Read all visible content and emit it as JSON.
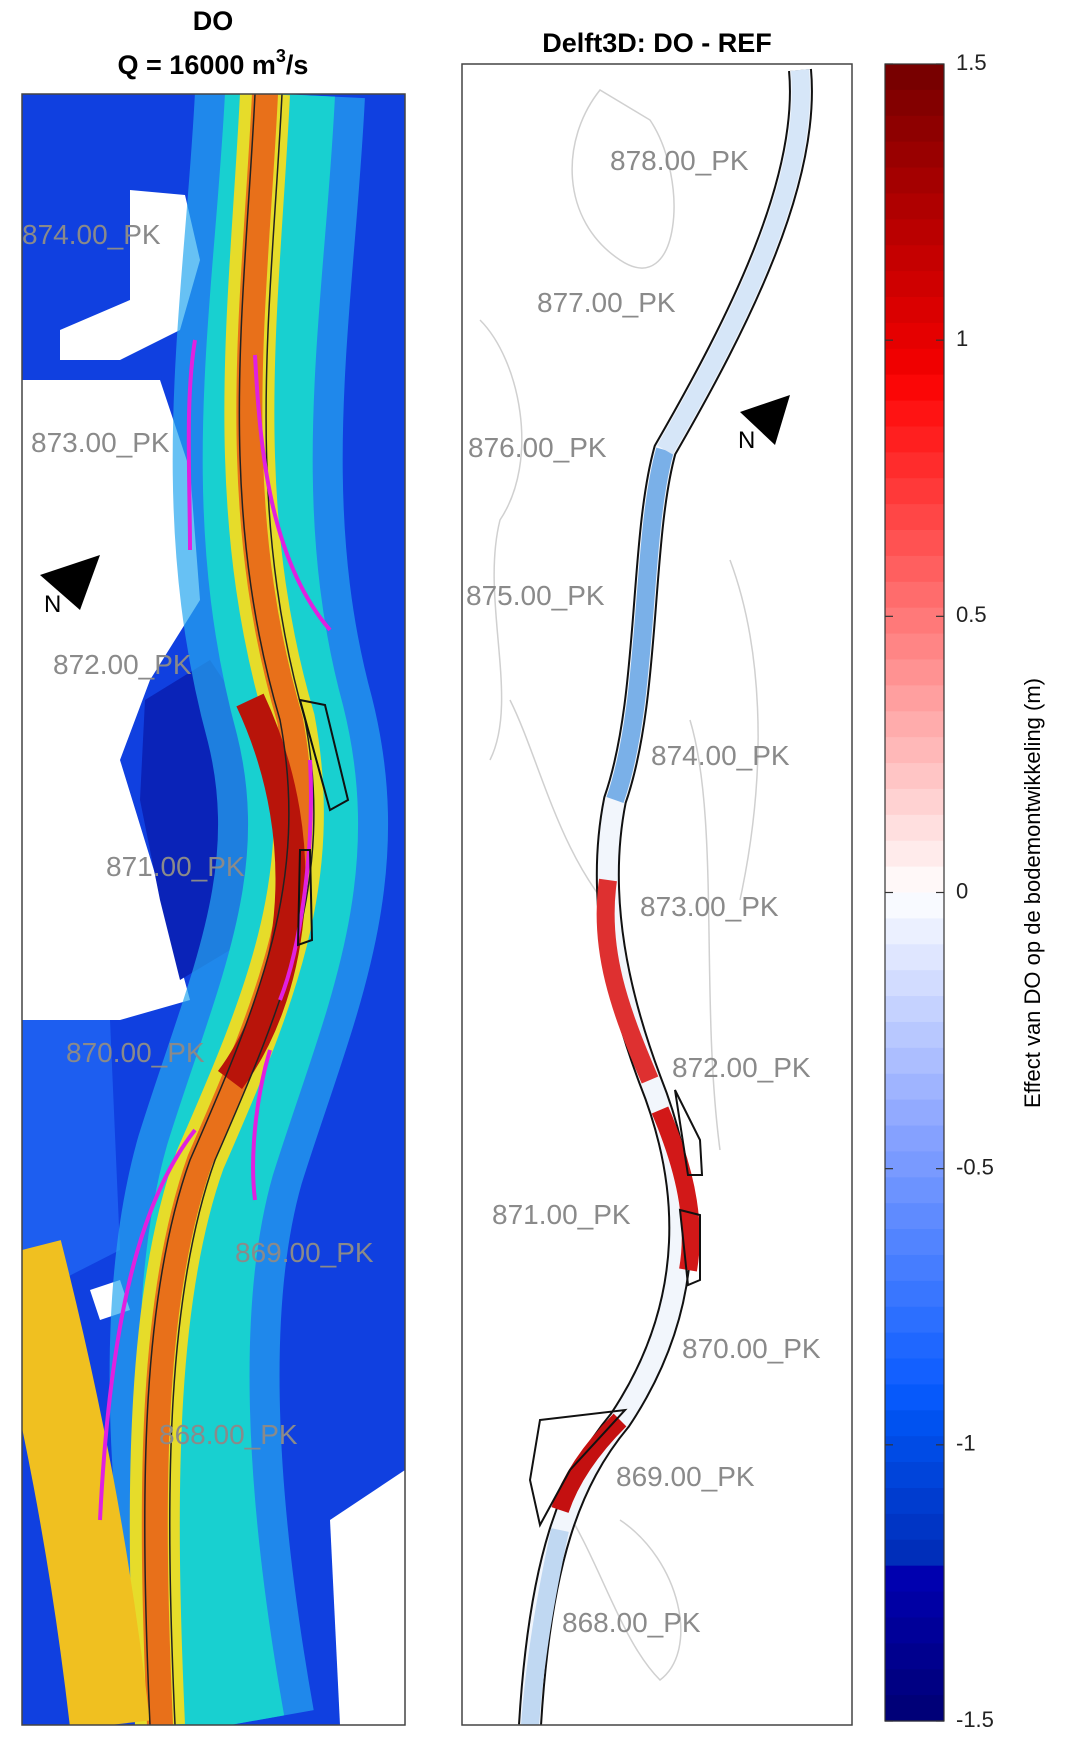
{
  "left_panel": {
    "title": "DO",
    "subtitle": [
      "Q = 16000 m",
      "3",
      "/s"
    ],
    "north": "N",
    "labels": [
      "874.00_PK",
      "873.00_PK",
      "872.00_PK",
      "871.00_PK",
      "870.00_PK",
      "869.00_PK",
      "868.00_PK"
    ]
  },
  "right_panel": {
    "title": "Delft3D: DO - REF",
    "north": "N",
    "labels": [
      "878.00_PK",
      "877.00_PK",
      "876.00_PK",
      "875.00_PK",
      "874.00_PK",
      "873.00_PK",
      "872.00_PK",
      "871.00_PK",
      "870.00_PK",
      "869.00_PK",
      "868.00_PK"
    ]
  },
  "colorbar": {
    "label": "Effect van DO op de bodemontwikkeling (m)",
    "lim": [
      -1.5,
      1.5
    ],
    "ticks": [
      1.5,
      1,
      0.5,
      0,
      -0.5,
      -1,
      -1.5
    ]
  }
}
